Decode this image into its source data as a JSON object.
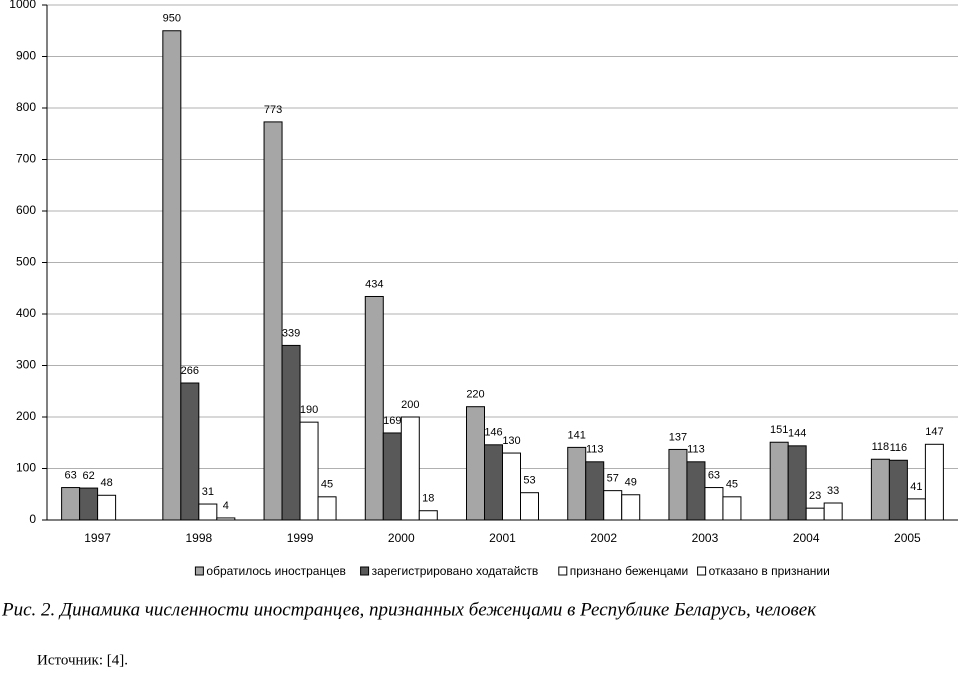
{
  "chart_data": {
    "type": "bar",
    "categories": [
      "1997",
      "1998",
      "1999",
      "2000",
      "2001",
      "2002",
      "2003",
      "2004",
      "2005"
    ],
    "series": [
      {
        "name": "обратилось иностранцев",
        "color": "#a6a6a6",
        "values": [
          63,
          950,
          773,
          434,
          220,
          141,
          137,
          151,
          118
        ]
      },
      {
        "name": "зарегистрировано ходатайств",
        "color": "#595959",
        "values": [
          62,
          266,
          339,
          169,
          146,
          113,
          113,
          144,
          116
        ]
      },
      {
        "name": "признано беженцами",
        "color": "#ffffff",
        "values": [
          48,
          31,
          190,
          200,
          130,
          57,
          63,
          23,
          41
        ]
      },
      {
        "name": "отказано в признании",
        "color": "#ffffff",
        "values": [
          null,
          4,
          45,
          18,
          53,
          49,
          45,
          33,
          147
        ]
      }
    ],
    "ylim": [
      0,
      1000
    ],
    "yticks": [
      0,
      100,
      200,
      300,
      400,
      500,
      600,
      700,
      800,
      900,
      1000
    ],
    "grid": true,
    "legend": "bottom"
  },
  "caption": "Рис. 2. Динамика численности иностранцев, признанных беженцами в Республике Беларусь, человек",
  "source": "Источник: [4]."
}
